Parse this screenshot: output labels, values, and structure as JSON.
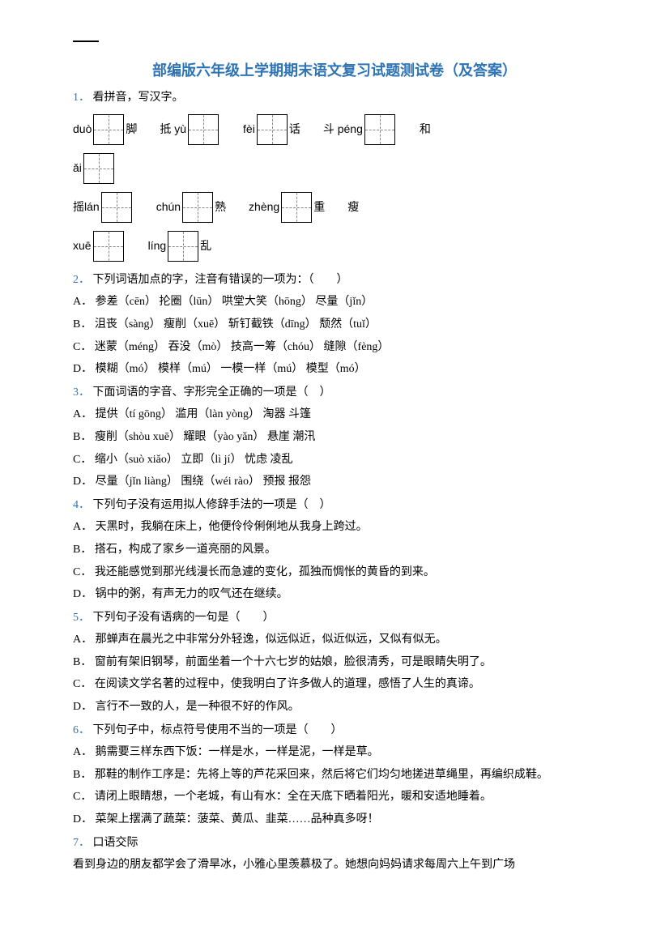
{
  "title": "部编版六年级上学期期末语文复习试题测试卷（及答案）",
  "title_color": "#2e74b5",
  "qnum_color": "#2e74b5",
  "q1": {
    "num": "1．",
    "stem": "看拼音，写汉字。",
    "row1": [
      {
        "pre": "duò",
        "post": "脚"
      },
      {
        "pre": "抵 yù",
        "post": ""
      },
      {
        "pre": "fèi",
        "post": "话"
      },
      {
        "pre": "斗 péng",
        "post": ""
      },
      {
        "pre_plain": "和",
        "no_box": true
      }
    ],
    "row2": [
      {
        "pre": "ǎi",
        "post": ""
      }
    ],
    "row3": [
      {
        "pre_plain": "摇 ",
        "pre": "lán",
        "post": ""
      },
      {
        "pre": "chún",
        "post": "熟"
      },
      {
        "pre": "zhèng",
        "post": "重"
      },
      {
        "pre_plain": "瘦",
        "no_box": true
      }
    ],
    "row4": [
      {
        "pre": "xuē",
        "post": ""
      },
      {
        "pre": "líng",
        "post": "乱"
      }
    ]
  },
  "q2": {
    "num": "2．",
    "stem": "下列词语加点的字，注音有错误的一项为：（　　）",
    "opts": [
      "A．  参差（cēn）       抡圈（lūn）      哄堂大笑（hōng）    尽量（jǐn）",
      "B．  沮丧（sàng）     瘦削（xuē）     斩钉截铁（dīng）     颓然（tuǐ）",
      "C．  迷蒙（méng）   吞没（mò）      技高一筹（chóu）     缝隙（fèng）",
      "D．  模糊（mó）       模样（mú）      一模一样（mú）       模型（mó）"
    ]
  },
  "q3": {
    "num": "3．",
    "stem": "下面词语的字音、字形完全正确的一项是（　）",
    "opts": [
      "A．  提供（tí gōng）          滥用（làn yòng）       淘器        斗篷",
      "B．  瘦削（shòu xuē）       耀眼（yào yǎn）         悬崖        潮汛",
      "C．  缩小（suò xiǎo）        立即（lì jí）               忧虑        凌乱",
      "D．  尽量（jǐn liàng）        围绕（wéi rào）          预报        报怨"
    ]
  },
  "q4": {
    "num": "4．",
    "stem": "下列句子没有运用拟人修辞手法的一项是（　）",
    "opts": [
      "A．  天黑时，我躺在床上，他便伶伶俐俐地从我身上跨过。",
      "B．  搭石，构成了家乡一道亮丽的风景。",
      "C．  我还能感觉到那光线漫长而急遽的变化，孤独而惆怅的黄昏的到来。",
      "D．  锅中的粥，有声无力的叹气还在继续。"
    ]
  },
  "q5": {
    "num": "5．",
    "stem": "下列句子没有语病的一句是（　　）",
    "opts": [
      "A．  那蝉声在晨光之中非常分外轻逸，似远似近，似近似远，又似有似无。",
      "B．  窗前有架旧钢琴，前面坐着一个十六七岁的姑娘，脸很清秀，可是眼睛失明了。",
      "C．  在阅读文学名著的过程中，使我明白了许多做人的道理，感悟了人生的真谛。",
      "D．  言行不一致的人，是一种很不好的作风。"
    ]
  },
  "q6": {
    "num": "6．",
    "stem": "下列句子中，标点符号使用不当的一项是（　　）",
    "opts": [
      "A．  鹅需要三样东西下饭：一样是水，一样是泥，一样是草。",
      "B．  那鞋的制作工序是：先将上等的芦花采回来，然后将它们均匀地搓进草绳里，再编织成鞋。",
      "C．  请闭上眼睛想，一个老城，有山有水：全在天底下晒着阳光，暖和安适地睡着。",
      "D．  菜架上摆满了蔬菜：菠菜、黄瓜、韭菜……品种真多呀！"
    ]
  },
  "q7": {
    "num": "7．",
    "stem": "口语交际",
    "body": "看到身边的朋友都学会了滑旱冰，小雅心里羡慕极了。她想向妈妈请求每周六上午到广场"
  }
}
